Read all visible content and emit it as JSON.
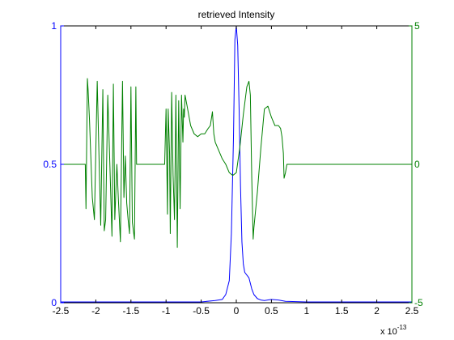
{
  "chart_data": {
    "type": "line",
    "title": "retrieved Intensity",
    "x_exponent_label": "x 10",
    "x_exponent_power": "-13",
    "xlim": [
      -2.5,
      2.5
    ],
    "x_ticks": [
      "-2.5",
      "-2",
      "-1.5",
      "-1",
      "-0.5",
      "0",
      "0.5",
      "1",
      "1.5",
      "2",
      "2.5"
    ],
    "y_left": {
      "lim": [
        0,
        1
      ],
      "ticks": [
        "0",
        "0.5",
        "1"
      ],
      "color": "#0000ff"
    },
    "y_right": {
      "lim": [
        -5,
        5
      ],
      "ticks": [
        "-5",
        "0",
        "5"
      ],
      "color": "#008000"
    },
    "grid": false,
    "series": [
      {
        "axis": "left",
        "color": "#0000ff",
        "x": [
          -2.5,
          -0.5,
          -0.3,
          -0.2,
          -0.15,
          -0.1,
          -0.07,
          -0.04,
          -0.02,
          0,
          0.02,
          0.04,
          0.06,
          0.08,
          0.1,
          0.12,
          0.15,
          0.18,
          0.2,
          0.22,
          0.25,
          0.3,
          0.35,
          0.4,
          0.5,
          0.6,
          0.7,
          1.0,
          2.5
        ],
        "y": [
          0.003,
          0.003,
          0.008,
          0.012,
          0.03,
          0.08,
          0.25,
          0.6,
          0.95,
          1.0,
          0.93,
          0.7,
          0.42,
          0.22,
          0.14,
          0.11,
          0.1,
          0.09,
          0.07,
          0.05,
          0.03,
          0.015,
          0.01,
          0.008,
          0.012,
          0.01,
          0.005,
          0.003,
          0.003
        ]
      },
      {
        "axis": "right",
        "color": "#008000",
        "x": [
          -2.5,
          -2.15,
          -2.14,
          -2.12,
          -2.11,
          -2.09,
          -2.07,
          -2.05,
          -2.02,
          -1.98,
          -1.95,
          -1.93,
          -1.9,
          -1.88,
          -1.86,
          -1.83,
          -1.8,
          -1.77,
          -1.75,
          -1.73,
          -1.7,
          -1.68,
          -1.65,
          -1.62,
          -1.6,
          -1.58,
          -1.56,
          -1.54,
          -1.52,
          -1.5,
          -1.48,
          -1.45,
          -1.43,
          -1.42,
          -1.41,
          -1.4,
          -1.02,
          -1.0,
          -0.98,
          -0.97,
          -0.95,
          -0.94,
          -0.92,
          -0.9,
          -0.88,
          -0.86,
          -0.84,
          -0.82,
          -0.8,
          -0.78,
          -0.76,
          -0.75,
          -0.74,
          -0.73,
          -0.7,
          -0.65,
          -0.6,
          -0.55,
          -0.5,
          -0.45,
          -0.4,
          -0.37,
          -0.34,
          -0.32,
          -0.3,
          -0.25,
          -0.2,
          -0.15,
          -0.1,
          -0.05,
          0,
          0.05,
          0.1,
          0.15,
          0.18,
          0.2,
          0.22,
          0.24,
          0.25,
          0.3,
          0.35,
          0.4,
          0.45,
          0.5,
          0.55,
          0.6,
          0.63,
          0.65,
          0.67,
          0.68,
          0.7,
          0.72,
          2.5
        ],
        "y": [
          0,
          0,
          -1.6,
          3.1,
          2.7,
          1.6,
          0.2,
          -1.2,
          -2.0,
          3.0,
          -0.2,
          -2.2,
          2.7,
          -2.4,
          -2.0,
          2.5,
          0.0,
          -2.6,
          2.9,
          -2.0,
          0.0,
          -1.2,
          -2.8,
          3.0,
          -1.2,
          0.3,
          -1.4,
          -2.0,
          -2.5,
          2.8,
          -2.1,
          -2.7,
          2.8,
          0,
          0,
          0,
          0,
          2.0,
          -1.8,
          2.0,
          0.4,
          -2.5,
          2.6,
          -0.4,
          -2.0,
          2.5,
          -3.0,
          2.3,
          -1.6,
          2.5,
          0.8,
          2.0,
          1.7,
          2.5,
          2.1,
          1.4,
          1.1,
          1.0,
          1.1,
          1.1,
          1.3,
          1.4,
          1.9,
          1.1,
          0.8,
          0.5,
          0.2,
          0.0,
          -0.3,
          -0.4,
          -0.3,
          0.6,
          1.8,
          2.8,
          3.0,
          2.5,
          -0.5,
          -2.7,
          -2.3,
          -1.0,
          0.6,
          2.0,
          2.1,
          1.7,
          1.4,
          1.4,
          1.3,
          1.0,
          0.4,
          -0.5,
          -0.3,
          0,
          0
        ]
      }
    ]
  }
}
